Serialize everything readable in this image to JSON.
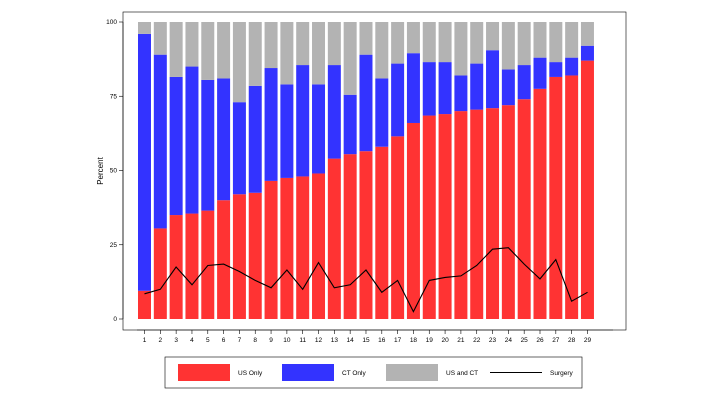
{
  "chart_data": {
    "type": "bar",
    "stacked": true,
    "title": "",
    "xlabel": "",
    "ylabel": "Percent",
    "ylim": [
      0,
      100
    ],
    "yticks": [
      0,
      25,
      50,
      75,
      100
    ],
    "categories": [
      "1",
      "2",
      "3",
      "4",
      "5",
      "6",
      "7",
      "8",
      "9",
      "10",
      "11",
      "12",
      "13",
      "14",
      "15",
      "16",
      "17",
      "18",
      "19",
      "20",
      "21",
      "22",
      "23",
      "24",
      "25",
      "26",
      "27",
      "28",
      "29"
    ],
    "series": [
      {
        "name": "US Only",
        "color": "#ff3333",
        "values": [
          9.5,
          30.5,
          35,
          35.5,
          36.5,
          40,
          42,
          42.5,
          46.5,
          47.5,
          48,
          49,
          54,
          55.5,
          56.5,
          58,
          61.5,
          66,
          68.5,
          69,
          70,
          70.5,
          71,
          72,
          74,
          77.5,
          81.5,
          82,
          87
        ]
      },
      {
        "name": "CT Only",
        "color": "#3333ff",
        "values": [
          86.5,
          58.5,
          46.5,
          49.5,
          44,
          41,
          31,
          36,
          38,
          31.5,
          37.5,
          30,
          31.5,
          20,
          32.5,
          23,
          24.5,
          23.5,
          18,
          17.5,
          12,
          15.5,
          19.5,
          12,
          11.5,
          10.5,
          5,
          6,
          5
        ]
      },
      {
        "name": "US and CT",
        "color": "#b3b3b3",
        "values": [
          4,
          11,
          18.5,
          15,
          19.5,
          19,
          27,
          21.5,
          15.5,
          21,
          14.5,
          21,
          14.5,
          24.5,
          11,
          19,
          14,
          10.5,
          13.5,
          13.5,
          18,
          14,
          9.5,
          16,
          14.5,
          12,
          13.5,
          12,
          8
        ]
      }
    ],
    "line": {
      "name": "Surgery",
      "color": "#000000",
      "values": [
        8.5,
        10,
        17.5,
        11.5,
        18,
        18.5,
        16,
        13,
        10.5,
        16.5,
        10,
        19,
        10.5,
        11.5,
        16.5,
        9,
        13,
        2.5,
        13,
        14,
        14.5,
        18,
        23.5,
        24,
        18.5,
        13.5,
        20,
        6,
        9
      ]
    },
    "legend": {
      "position": "bottom",
      "items": [
        "US Only",
        "CT Only",
        "US and CT",
        "Surgery"
      ]
    },
    "grid": false
  }
}
